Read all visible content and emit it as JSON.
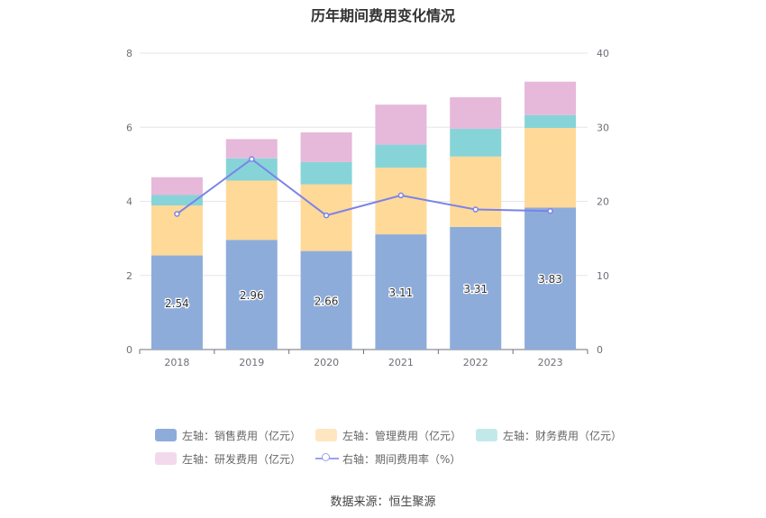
{
  "title": "历年期间费用变化情况",
  "source": "数据来源：恒生聚源",
  "chart_data": {
    "type": "bar",
    "stacked": true,
    "categories": [
      "2018",
      "2019",
      "2020",
      "2021",
      "2022",
      "2023"
    ],
    "left_axis": {
      "ylim": [
        0,
        8
      ],
      "ticks": [
        "0",
        "2",
        "4",
        "6",
        "8"
      ]
    },
    "right_axis": {
      "ylim": [
        0,
        40
      ],
      "ticks": [
        "0",
        "10",
        "20",
        "30",
        "40"
      ]
    },
    "series": [
      {
        "name": "左轴：销售费用（亿元）",
        "type": "bar",
        "axis": "left",
        "color": "#8eacda",
        "values": [
          2.54,
          2.96,
          2.66,
          3.11,
          3.31,
          3.83
        ],
        "labels": [
          "2.54",
          "2.96",
          "2.66",
          "3.11",
          "3.31",
          "3.83"
        ]
      },
      {
        "name": "左轴：管理费用（亿元）",
        "type": "bar",
        "axis": "left",
        "color": "#ffd998",
        "values": [
          1.35,
          1.6,
          1.8,
          1.8,
          1.9,
          2.15
        ]
      },
      {
        "name": "左轴：财务费用（亿元）",
        "type": "bar",
        "axis": "left",
        "color": "#86d4d8",
        "values": [
          0.28,
          0.6,
          0.6,
          0.62,
          0.75,
          0.35
        ]
      },
      {
        "name": "左轴：研发费用（亿元）",
        "type": "bar",
        "axis": "left",
        "color": "#e6b8d9",
        "values": [
          0.48,
          0.52,
          0.8,
          1.08,
          0.85,
          0.9
        ]
      },
      {
        "name": "右轴：期间费用率（%）",
        "type": "line",
        "axis": "right",
        "color": "#7b83e8",
        "values": [
          18.3,
          25.7,
          18.1,
          20.8,
          18.9,
          18.7
        ]
      }
    ],
    "legend_colors": [
      "#8eacda",
      "#ffe6c0",
      "#c2e9ea",
      "#f2d9ec",
      "#7b83e8"
    ],
    "grid": true,
    "legend_position": "bottom"
  }
}
